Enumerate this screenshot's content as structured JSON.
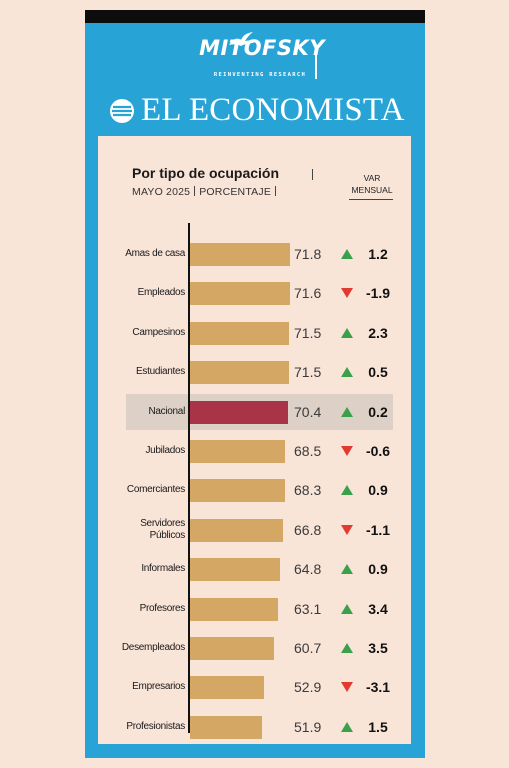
{
  "header": {
    "brand": "MITOFSKY",
    "brand_tagline": "REINVENTING RESEARCH",
    "publisher": "EL ECONOMISTA",
    "title": "Por tipo de ocupación",
    "subtitle_date": "MAYO 2025",
    "subtitle_unit": "PORCENTAJE",
    "var_label_1": "VAR",
    "var_label_2": "MENSUAL"
  },
  "colors": {
    "frame": "#27a3d6",
    "background": "#f9e4d8",
    "bar": "#d5a764",
    "bar_highlight": "#a93448",
    "up": "#3aa14a",
    "down": "#e23a30"
  },
  "chart_data": {
    "type": "bar",
    "orientation": "horizontal",
    "title": "Por tipo de ocupación",
    "subtitle": "MAYO 2025 | PORCENTAJE",
    "categories": [
      "Amas de casa",
      "Empleados",
      "Campesinos",
      "Estudiantes",
      "Nacional",
      "Jubilados",
      "Comerciantes",
      "Servidores Públicos",
      "Informales",
      "Profesores",
      "Desempleados",
      "Empresarios",
      "Profesionistas"
    ],
    "values": [
      71.8,
      71.6,
      71.5,
      71.5,
      70.4,
      68.5,
      68.3,
      66.8,
      64.8,
      63.1,
      60.7,
      52.9,
      51.9
    ],
    "value_labels": [
      "71.8",
      "71.6",
      "71.5",
      "71.5",
      "70.4",
      "68.5",
      "68.3",
      "66.8",
      "64.8",
      "63.1",
      "60.7",
      "52.9",
      "51.9"
    ],
    "var_mensual": [
      1.2,
      -1.9,
      2.3,
      0.5,
      0.2,
      -0.6,
      0.9,
      -1.1,
      0.9,
      3.4,
      3.5,
      -3.1,
      1.5
    ],
    "var_labels": [
      "1.2",
      "-1.9",
      "2.3",
      "0.5",
      "0.2",
      "-0.6",
      "0.9",
      "-1.1",
      "0.9",
      "3.4",
      "3.5",
      "-3.1",
      "1.5"
    ],
    "highlight": "Nacional",
    "xlim": [
      0,
      100
    ]
  }
}
